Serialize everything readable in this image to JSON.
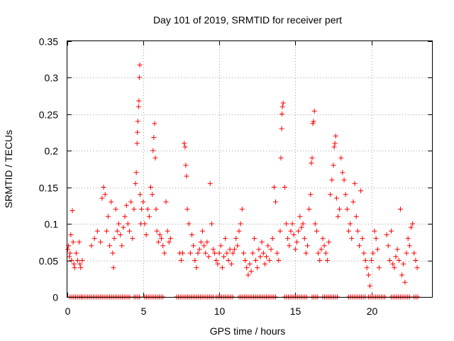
{
  "chart_data": {
    "type": "scatter",
    "title": "Day 101 of 2019, SRMTID for receiver pert",
    "xlabel": "GPS time / hours",
    "ylabel": "SRMTID / TECUs",
    "xlim": [
      0,
      24
    ],
    "ylim": [
      0,
      0.35
    ],
    "grid": true,
    "marker": "plus",
    "color": "#ff0000",
    "x_ticks": [
      0,
      5,
      10,
      15,
      20
    ],
    "x_tick_labels": [
      "0",
      "5",
      "10",
      "15",
      "20"
    ],
    "y_ticks": [
      0,
      0.05,
      0.1,
      0.15,
      0.2,
      0.25,
      0.3,
      0.35
    ],
    "y_tick_labels": [
      "0",
      "0.05",
      "0.1",
      "0.15",
      "0.2",
      "0.25",
      "0.3",
      "0.35"
    ],
    "series": [
      {
        "name": "SRMTID",
        "points": [
          [
            0.05,
            0.065
          ],
          [
            0.1,
            0.07
          ],
          [
            0.15,
            0.055
          ],
          [
            0.2,
            0.06
          ],
          [
            0.25,
            0.085
          ],
          [
            0.3,
            0.05
          ],
          [
            0.35,
            0.118
          ],
          [
            0.4,
            0.075
          ],
          [
            0.45,
            0.045
          ],
          [
            0.5,
            0.04
          ],
          [
            0.6,
            0.06
          ],
          [
            0.7,
            0.05
          ],
          [
            0.8,
            0.075
          ],
          [
            0.85,
            0.045
          ],
          [
            0.9,
            0.04
          ],
          [
            1.0,
            0.05
          ],
          [
            1.6,
            0.07
          ],
          [
            1.8,
            0.08
          ],
          [
            2.0,
            0.09
          ],
          [
            2.2,
            0.075
          ],
          [
            2.3,
            0.135
          ],
          [
            2.4,
            0.15
          ],
          [
            2.5,
            0.14
          ],
          [
            2.6,
            0.09
          ],
          [
            2.7,
            0.11
          ],
          [
            2.8,
            0.07
          ],
          [
            2.9,
            0.13
          ],
          [
            3.0,
            0.06
          ],
          [
            3.05,
            0.04
          ],
          [
            3.1,
            0.08
          ],
          [
            3.2,
            0.12
          ],
          [
            3.3,
            0.09
          ],
          [
            3.4,
            0.1
          ],
          [
            3.5,
            0.085
          ],
          [
            3.6,
            0.07
          ],
          [
            3.7,
            0.095
          ],
          [
            3.8,
            0.11
          ],
          [
            3.9,
            0.125
          ],
          [
            4.0,
            0.1
          ],
          [
            4.1,
            0.09
          ],
          [
            4.2,
            0.13
          ],
          [
            4.3,
            0.08
          ],
          [
            4.4,
            0.12
          ],
          [
            4.5,
            0.155
          ],
          [
            4.55,
            0.17
          ],
          [
            4.6,
            0.21
          ],
          [
            4.62,
            0.225
          ],
          [
            4.65,
            0.24
          ],
          [
            4.7,
            0.26
          ],
          [
            4.72,
            0.268
          ],
          [
            4.75,
            0.3
          ],
          [
            4.78,
            0.317
          ],
          [
            4.8,
            0.14
          ],
          [
            4.85,
            0.1
          ],
          [
            4.9,
            0.12
          ],
          [
            5.0,
            0.13
          ],
          [
            5.1,
            0.1
          ],
          [
            5.2,
            0.085
          ],
          [
            5.3,
            0.12
          ],
          [
            5.4,
            0.11
          ],
          [
            5.5,
            0.15
          ],
          [
            5.6,
            0.14
          ],
          [
            5.65,
            0.2
          ],
          [
            5.7,
            0.218
          ],
          [
            5.75,
            0.237
          ],
          [
            5.8,
            0.19
          ],
          [
            5.85,
            0.12
          ],
          [
            5.9,
            0.09
          ],
          [
            6.0,
            0.075
          ],
          [
            6.1,
            0.085
          ],
          [
            6.2,
            0.08
          ],
          [
            6.3,
            0.07
          ],
          [
            6.4,
            0.06
          ],
          [
            6.5,
            0.13
          ],
          [
            6.6,
            0.09
          ],
          [
            6.7,
            0.075
          ],
          [
            6.8,
            0.08
          ],
          [
            7.4,
            0.06
          ],
          [
            7.5,
            0.05
          ],
          [
            7.6,
            0.06
          ],
          [
            7.7,
            0.21
          ],
          [
            7.75,
            0.205
          ],
          [
            7.8,
            0.18
          ],
          [
            7.85,
            0.165
          ],
          [
            7.9,
            0.12
          ],
          [
            8.0,
            0.1
          ],
          [
            8.1,
            0.06
          ],
          [
            8.2,
            0.085
          ],
          [
            8.3,
            0.07
          ],
          [
            8.4,
            0.05
          ],
          [
            8.5,
            0.04
          ],
          [
            8.6,
            0.06
          ],
          [
            8.7,
            0.065
          ],
          [
            8.8,
            0.075
          ],
          [
            8.9,
            0.09
          ],
          [
            9.0,
            0.07
          ],
          [
            9.1,
            0.06
          ],
          [
            9.2,
            0.075
          ],
          [
            9.3,
            0.055
          ],
          [
            9.4,
            0.155
          ],
          [
            9.5,
            0.1
          ],
          [
            9.6,
            0.065
          ],
          [
            9.7,
            0.06
          ],
          [
            9.8,
            0.05
          ],
          [
            9.9,
            0.045
          ],
          [
            10.0,
            0.06
          ],
          [
            10.1,
            0.07
          ],
          [
            10.2,
            0.04
          ],
          [
            10.3,
            0.055
          ],
          [
            10.4,
            0.08
          ],
          [
            10.5,
            0.06
          ],
          [
            10.6,
            0.05
          ],
          [
            10.7,
            0.065
          ],
          [
            10.8,
            0.045
          ],
          [
            10.9,
            0.06
          ],
          [
            11.0,
            0.065
          ],
          [
            11.1,
            0.08
          ],
          [
            11.2,
            0.07
          ],
          [
            11.3,
            0.09
          ],
          [
            11.4,
            0.1
          ],
          [
            11.5,
            0.12
          ],
          [
            11.6,
            0.06
          ],
          [
            11.7,
            0.05
          ],
          [
            11.8,
            0.04
          ],
          [
            11.9,
            0.03
          ],
          [
            12.0,
            0.045
          ],
          [
            12.1,
            0.035
          ],
          [
            12.2,
            0.06
          ],
          [
            12.3,
            0.08
          ],
          [
            12.4,
            0.05
          ],
          [
            12.5,
            0.04
          ],
          [
            12.6,
            0.065
          ],
          [
            12.7,
            0.055
          ],
          [
            12.8,
            0.075
          ],
          [
            12.9,
            0.06
          ],
          [
            13.0,
            0.045
          ],
          [
            13.1,
            0.055
          ],
          [
            13.2,
            0.07
          ],
          [
            13.3,
            0.05
          ],
          [
            13.4,
            0.065
          ],
          [
            13.5,
            0.08
          ],
          [
            13.6,
            0.15
          ],
          [
            13.7,
            0.13
          ],
          [
            13.8,
            0.06
          ],
          [
            13.9,
            0.05
          ],
          [
            14.0,
            0.09
          ],
          [
            14.05,
            0.19
          ],
          [
            14.1,
            0.23
          ],
          [
            14.12,
            0.25
          ],
          [
            14.15,
            0.26
          ],
          [
            14.2,
            0.265
          ],
          [
            14.3,
            0.15
          ],
          [
            14.4,
            0.1
          ],
          [
            14.5,
            0.08
          ],
          [
            14.6,
            0.07
          ],
          [
            14.7,
            0.09
          ],
          [
            14.8,
            0.1
          ],
          [
            14.9,
            0.085
          ],
          [
            15.0,
            0.065
          ],
          [
            15.1,
            0.075
          ],
          [
            15.2,
            0.09
          ],
          [
            15.3,
            0.11
          ],
          [
            15.4,
            0.095
          ],
          [
            15.5,
            0.1
          ],
          [
            15.6,
            0.08
          ],
          [
            15.7,
            0.06
          ],
          [
            15.8,
            0.07
          ],
          [
            15.9,
            0.12
          ],
          [
            16.0,
            0.14
          ],
          [
            16.05,
            0.183
          ],
          [
            16.1,
            0.19
          ],
          [
            16.15,
            0.237
          ],
          [
            16.2,
            0.24
          ],
          [
            16.25,
            0.254
          ],
          [
            16.3,
            0.1
          ],
          [
            16.4,
            0.09
          ],
          [
            16.5,
            0.06
          ],
          [
            16.6,
            0.05
          ],
          [
            16.7,
            0.065
          ],
          [
            16.8,
            0.08
          ],
          [
            16.9,
            0.07
          ],
          [
            17.0,
            0.06
          ],
          [
            17.1,
            0.05
          ],
          [
            17.2,
            0.075
          ],
          [
            17.3,
            0.14
          ],
          [
            17.4,
            0.16
          ],
          [
            17.5,
            0.18
          ],
          [
            17.55,
            0.205
          ],
          [
            17.6,
            0.21
          ],
          [
            17.65,
            0.22
          ],
          [
            17.7,
            0.135
          ],
          [
            17.8,
            0.11
          ],
          [
            17.9,
            0.12
          ],
          [
            18.0,
            0.19
          ],
          [
            18.1,
            0.17
          ],
          [
            18.2,
            0.16
          ],
          [
            18.3,
            0.14
          ],
          [
            18.4,
            0.12
          ],
          [
            18.5,
            0.09
          ],
          [
            18.6,
            0.1
          ],
          [
            18.7,
            0.08
          ],
          [
            18.8,
            0.13
          ],
          [
            18.9,
            0.155
          ],
          [
            19.0,
            0.11
          ],
          [
            19.1,
            0.09
          ],
          [
            19.2,
            0.07
          ],
          [
            19.3,
            0.145
          ],
          [
            19.4,
            0.08
          ],
          [
            19.5,
            0.06
          ],
          [
            19.6,
            0.05
          ],
          [
            19.7,
            0.04
          ],
          [
            19.8,
            0.03
          ],
          [
            19.9,
            0.015
          ],
          [
            20.0,
            0.05
          ],
          [
            20.1,
            0.06
          ],
          [
            20.2,
            0.09
          ],
          [
            20.3,
            0.08
          ],
          [
            20.4,
            0.065
          ],
          [
            20.5,
            0.04
          ],
          [
            21.0,
            0.085
          ],
          [
            21.1,
            0.07
          ],
          [
            21.2,
            0.05
          ],
          [
            21.3,
            0.09
          ],
          [
            21.4,
            0.045
          ],
          [
            21.5,
            0.04
          ],
          [
            21.6,
            0.055
          ],
          [
            21.7,
            0.065
          ],
          [
            21.8,
            0.05
          ],
          [
            21.9,
            0.12
          ],
          [
            22.0,
            0.03
          ],
          [
            22.1,
            0.045
          ],
          [
            22.2,
            0.02
          ],
          [
            22.3,
            0.06
          ],
          [
            22.4,
            0.08
          ],
          [
            22.5,
            0.07
          ],
          [
            22.6,
            0.095
          ],
          [
            22.7,
            0.1
          ],
          [
            22.8,
            0.06
          ],
          [
            22.9,
            0.05
          ],
          [
            23.0,
            0.04
          ]
        ]
      }
    ],
    "zero_row": {
      "y": 0,
      "ranges": [
        [
          0.2,
          1.0
        ],
        [
          1.0,
          4.2
        ],
        [
          4.4,
          4.8
        ],
        [
          5.1,
          6.3
        ],
        [
          7.2,
          9.6
        ],
        [
          9.8,
          10.9
        ],
        [
          11.3,
          13.8
        ],
        [
          14.3,
          15.8
        ],
        [
          16.1,
          16.5
        ],
        [
          16.8,
          17.8
        ],
        [
          18.5,
          19.6
        ],
        [
          19.8,
          20.9
        ],
        [
          21.3,
          22.6
        ],
        [
          22.8,
          23.1
        ]
      ],
      "step": 0.12
    }
  }
}
